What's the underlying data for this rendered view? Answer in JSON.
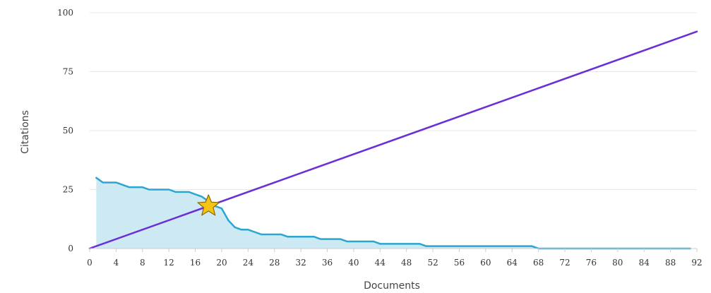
{
  "chart_data": {
    "type": "line",
    "xlabel": "Documents",
    "ylabel": "Citations",
    "xlim": [
      0,
      92
    ],
    "ylim": [
      0,
      100
    ],
    "x_ticks": [
      0,
      4,
      8,
      12,
      16,
      20,
      24,
      28,
      32,
      36,
      40,
      44,
      48,
      52,
      56,
      60,
      64,
      68,
      72,
      76,
      80,
      84,
      88,
      92
    ],
    "y_ticks": [
      0,
      25,
      50,
      75,
      100
    ],
    "grid": {
      "horizontal": true,
      "vertical": false
    },
    "legend": "none",
    "series": [
      {
        "kind": "area-step",
        "color": "#2aa7d0",
        "fill": "#cdeaf4",
        "points": [
          [
            1,
            30
          ],
          [
            2,
            28
          ],
          [
            3,
            28
          ],
          [
            4,
            28
          ],
          [
            5,
            27
          ],
          [
            6,
            26
          ],
          [
            7,
            26
          ],
          [
            8,
            26
          ],
          [
            9,
            25
          ],
          [
            10,
            25
          ],
          [
            11,
            25
          ],
          [
            12,
            25
          ],
          [
            13,
            24
          ],
          [
            14,
            24
          ],
          [
            15,
            24
          ],
          [
            16,
            23
          ],
          [
            17,
            22
          ],
          [
            18,
            20
          ],
          [
            19,
            18
          ],
          [
            20,
            17
          ],
          [
            21,
            12
          ],
          [
            22,
            9
          ],
          [
            23,
            8
          ],
          [
            24,
            8
          ],
          [
            25,
            7
          ],
          [
            26,
            6
          ],
          [
            27,
            6
          ],
          [
            28,
            6
          ],
          [
            29,
            6
          ],
          [
            30,
            5
          ],
          [
            31,
            5
          ],
          [
            32,
            5
          ],
          [
            33,
            5
          ],
          [
            34,
            5
          ],
          [
            35,
            4
          ],
          [
            36,
            4
          ],
          [
            37,
            4
          ],
          [
            38,
            4
          ],
          [
            39,
            3
          ],
          [
            40,
            3
          ],
          [
            41,
            3
          ],
          [
            42,
            3
          ],
          [
            43,
            3
          ],
          [
            44,
            2
          ],
          [
            45,
            2
          ],
          [
            46,
            2
          ],
          [
            47,
            2
          ],
          [
            48,
            2
          ],
          [
            49,
            2
          ],
          [
            50,
            2
          ],
          [
            51,
            1
          ],
          [
            52,
            1
          ],
          [
            53,
            1
          ],
          [
            54,
            1
          ],
          [
            55,
            1
          ],
          [
            56,
            1
          ],
          [
            57,
            1
          ],
          [
            58,
            1
          ],
          [
            59,
            1
          ],
          [
            60,
            1
          ],
          [
            61,
            1
          ],
          [
            62,
            1
          ],
          [
            63,
            1
          ],
          [
            64,
            1
          ],
          [
            65,
            1
          ],
          [
            66,
            1
          ],
          [
            67,
            1
          ],
          [
            68,
            0
          ],
          [
            69,
            0
          ],
          [
            70,
            0
          ],
          [
            71,
            0
          ],
          [
            72,
            0
          ],
          [
            73,
            0
          ],
          [
            74,
            0
          ],
          [
            75,
            0
          ],
          [
            76,
            0
          ],
          [
            77,
            0
          ],
          [
            78,
            0
          ],
          [
            79,
            0
          ],
          [
            80,
            0
          ],
          [
            81,
            0
          ],
          [
            82,
            0
          ],
          [
            83,
            0
          ],
          [
            84,
            0
          ],
          [
            85,
            0
          ],
          [
            86,
            0
          ],
          [
            87,
            0
          ],
          [
            88,
            0
          ],
          [
            89,
            0
          ],
          [
            90,
            0
          ],
          [
            91,
            0
          ]
        ]
      },
      {
        "kind": "line",
        "color": "#6a2fd6",
        "points": [
          [
            0,
            0
          ],
          [
            92,
            92
          ]
        ]
      }
    ],
    "marker": {
      "shape": "star",
      "x": 18,
      "y": 18,
      "color": "#f6c315",
      "stroke": "#8a6a00"
    },
    "colors": {
      "grid": "#e8e8e8",
      "axis": "#cccccc"
    }
  }
}
